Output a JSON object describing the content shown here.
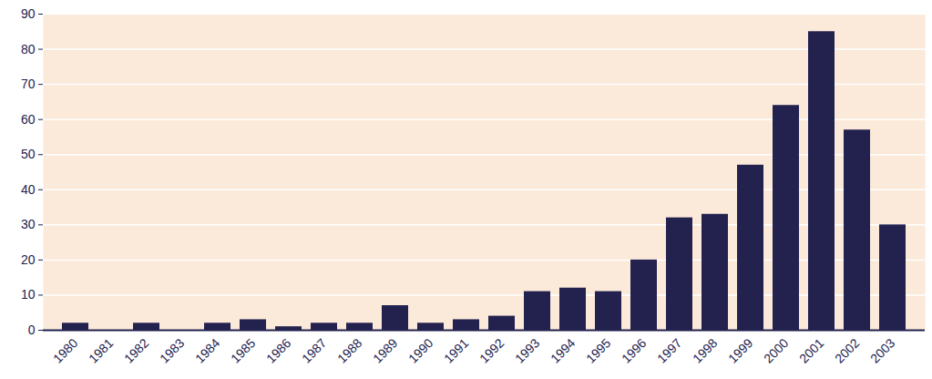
{
  "chart_data": {
    "type": "bar",
    "categories": [
      "1980",
      "1981",
      "1982",
      "1983",
      "1984",
      "1985",
      "1986",
      "1987",
      "1988",
      "1989",
      "1990",
      "1991",
      "1992",
      "1993",
      "1994",
      "1995",
      "1996",
      "1997",
      "1998",
      "1999",
      "2000",
      "2001",
      "2002",
      "2003"
    ],
    "values": [
      2,
      0,
      2,
      0,
      2,
      3,
      1,
      2,
      2,
      7,
      2,
      3,
      4,
      11,
      12,
      11,
      20,
      32,
      33,
      47,
      64,
      85,
      57,
      30
    ],
    "color": "#23224f",
    "ylim": [
      0,
      90
    ],
    "yticks": [
      0,
      10,
      20,
      30,
      40,
      50,
      60,
      70,
      80,
      90
    ],
    "grid": true
  }
}
